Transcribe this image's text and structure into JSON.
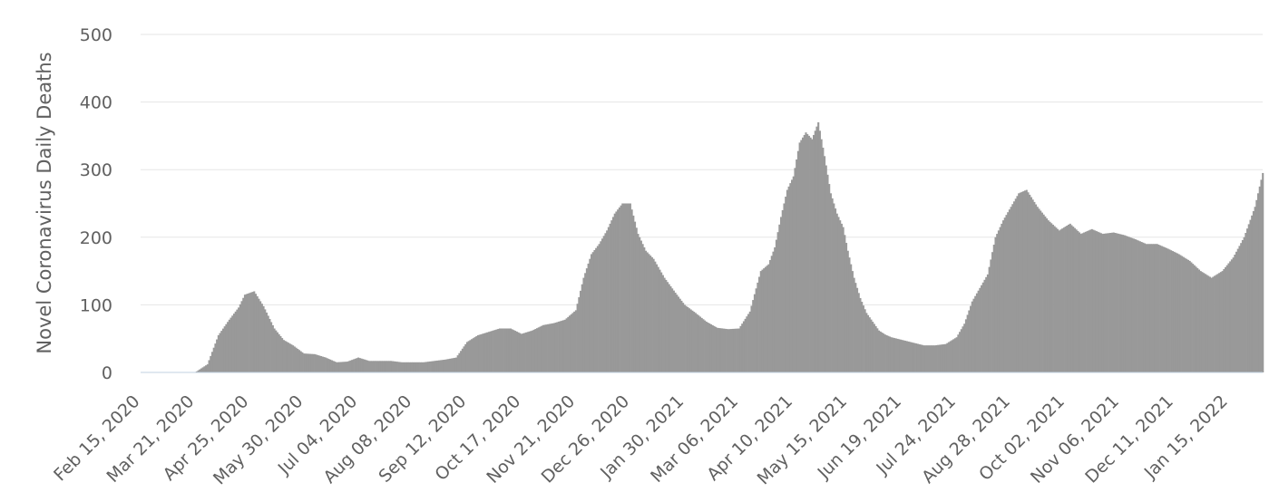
{
  "chart_data": {
    "type": "bar",
    "title": "",
    "ylabel": "Novel Coronavirus Daily Deaths",
    "xlabel": "",
    "ylim": [
      0,
      500
    ],
    "yticks": [
      0,
      100,
      200,
      300,
      400,
      500
    ],
    "x_start": "2020-02-15",
    "x_end": "2022-02-06",
    "xtick_labels": [
      "Feb 15, 2020",
      "Mar 21, 2020",
      "Apr 25, 2020",
      "May 30, 2020",
      "Jul 04, 2020",
      "Aug 08, 2020",
      "Sep 12, 2020",
      "Oct 17, 2020",
      "Nov 21, 2020",
      "Dec 26, 2020",
      "Jan 30, 2021",
      "Mar 06, 2021",
      "Apr 10, 2021",
      "May 15, 2021",
      "Jun 19, 2021",
      "Jul 24, 2021",
      "Aug 28, 2021",
      "Oct 02, 2021",
      "Nov 06, 2021",
      "Dec 11, 2021",
      "Jan 15, 2022"
    ],
    "grid": true,
    "legend": "none",
    "bar_color": "#999999",
    "series": [
      {
        "name": "",
        "x": [
          "2020-02-15",
          "2020-03-01",
          "2020-03-13",
          "2020-03-21",
          "2020-03-29",
          "2020-04-05",
          "2020-04-12",
          "2020-04-18",
          "2020-04-22",
          "2020-04-28",
          "2020-05-04",
          "2020-05-11",
          "2020-05-17",
          "2020-05-23",
          "2020-05-30",
          "2020-06-06",
          "2020-06-13",
          "2020-06-20",
          "2020-06-27",
          "2020-07-04",
          "2020-07-11",
          "2020-07-18",
          "2020-07-25",
          "2020-08-01",
          "2020-08-08",
          "2020-08-15",
          "2020-08-22",
          "2020-08-29",
          "2020-09-05",
          "2020-09-12",
          "2020-09-19",
          "2020-09-26",
          "2020-10-03",
          "2020-10-10",
          "2020-10-17",
          "2020-10-24",
          "2020-10-31",
          "2020-11-07",
          "2020-11-14",
          "2020-11-21",
          "2020-11-26",
          "2020-12-01",
          "2020-12-06",
          "2020-12-11",
          "2020-12-16",
          "2020-12-21",
          "2020-12-26",
          "2020-12-31",
          "2021-01-05",
          "2021-01-10",
          "2021-01-17",
          "2021-01-24",
          "2021-01-30",
          "2021-02-06",
          "2021-02-13",
          "2021-02-20",
          "2021-02-27",
          "2021-03-06",
          "2021-03-13",
          "2021-03-20",
          "2021-03-25",
          "2021-03-29",
          "2021-04-02",
          "2021-04-06",
          "2021-04-10",
          "2021-04-14",
          "2021-04-18",
          "2021-04-22",
          "2021-04-26",
          "2021-04-30",
          "2021-05-04",
          "2021-05-08",
          "2021-05-12",
          "2021-05-15",
          "2021-05-19",
          "2021-05-23",
          "2021-05-27",
          "2021-05-31",
          "2021-06-04",
          "2021-06-08",
          "2021-06-12",
          "2021-06-19",
          "2021-06-26",
          "2021-07-03",
          "2021-07-10",
          "2021-07-17",
          "2021-07-24",
          "2021-07-29",
          "2021-08-03",
          "2021-08-08",
          "2021-08-13",
          "2021-08-18",
          "2021-08-23",
          "2021-08-28",
          "2021-09-02",
          "2021-09-07",
          "2021-09-14",
          "2021-09-21",
          "2021-09-28",
          "2021-10-05",
          "2021-10-12",
          "2021-10-19",
          "2021-10-26",
          "2021-11-02",
          "2021-11-09",
          "2021-11-16",
          "2021-11-23",
          "2021-11-30",
          "2021-12-07",
          "2021-12-14",
          "2021-12-21",
          "2021-12-28",
          "2022-01-04",
          "2022-01-11",
          "2022-01-18",
          "2022-01-25",
          "2022-02-01",
          "2022-02-06"
        ],
        "values": [
          0,
          0,
          0,
          0,
          12,
          55,
          78,
          96,
          115,
          120,
          98,
          65,
          48,
          40,
          28,
          27,
          22,
          15,
          16,
          22,
          17,
          17,
          17,
          15,
          15,
          15,
          17,
          19,
          22,
          45,
          55,
          60,
          65,
          65,
          57,
          62,
          70,
          73,
          78,
          92,
          140,
          175,
          190,
          210,
          235,
          250,
          250,
          205,
          180,
          168,
          140,
          118,
          100,
          88,
          75,
          66,
          64,
          65,
          90,
          150,
          160,
          185,
          230,
          270,
          290,
          340,
          355,
          345,
          370,
          320,
          265,
          235,
          215,
          180,
          140,
          110,
          88,
          75,
          62,
          56,
          52,
          48,
          44,
          40,
          40,
          42,
          52,
          72,
          105,
          125,
          145,
          200,
          225,
          245,
          265,
          270,
          245,
          225,
          210,
          220,
          205,
          212,
          205,
          207,
          203,
          197,
          190,
          190,
          183,
          175,
          165,
          150,
          140,
          150,
          170,
          200,
          245,
          295
        ]
      }
    ]
  }
}
